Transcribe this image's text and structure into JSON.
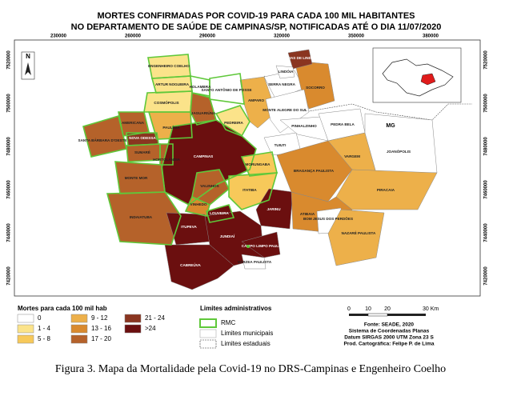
{
  "title": [
    "MORTES CONFIRMADAS POR COVID-19 PARA CADA 100 MIL HABITANTES",
    "NO DEPARTAMENTO DE SAÚDE DE CAMPINAS/SP, NOTIFICADAS ATÉ O DIA 11/07/2020"
  ],
  "x_coords": [
    230000,
    260000,
    290000,
    320000,
    350000,
    380000
  ],
  "y_coords": [
    7520000,
    7500000,
    7480000,
    7460000,
    7440000,
    7420000
  ],
  "north": "N",
  "state_label": "MG",
  "municipalities": [
    {
      "name": "ENGENHEIRO COELHO",
      "color": "#fbe38a"
    },
    {
      "name": "ARTUR NOGUEIRA",
      "color": "#fbe38a"
    },
    {
      "name": "HOLAMBRA",
      "color": "#ffffff"
    },
    {
      "name": "SANTO ANTÔNIO DE POSSE",
      "color": "#ffffff"
    },
    {
      "name": "COSMÓPOLIS",
      "color": "#fbe38a"
    },
    {
      "name": "JAGUARIÚNA",
      "color": "#b5622a"
    },
    {
      "name": "PEDREIRA",
      "color": "#fbe38a"
    },
    {
      "name": "AMPARO",
      "color": "#edb04a"
    },
    {
      "name": "SERRA NEGRA",
      "color": "#ffffff"
    },
    {
      "name": "SOCORRO",
      "color": "#d98a2e"
    },
    {
      "name": "ÁGUAS DE LINDÓIA",
      "color": "#8a3520"
    },
    {
      "name": "LINDÓIA",
      "color": "#ffffff"
    },
    {
      "name": "MONTE ALEGRE DO SUL",
      "color": "#ffffff"
    },
    {
      "name": "AMERICANA",
      "color": "#b5622a"
    },
    {
      "name": "PAULÍNIA",
      "color": "#edb04a"
    },
    {
      "name": "SANTA BÁRBARA D'OESTE",
      "color": "#b5622a"
    },
    {
      "name": "NOVA ODESSA",
      "color": "#8a3520"
    },
    {
      "name": "SUMARÉ",
      "color": "#b5622a"
    },
    {
      "name": "HORTOLÂNDIA",
      "color": "#b5622a"
    },
    {
      "name": "CAMPINAS",
      "color": "#6b0f0f"
    },
    {
      "name": "MONTE MOR",
      "color": "#b5622a"
    },
    {
      "name": "VALINHOS",
      "color": "#b5622a"
    },
    {
      "name": "VINHEDO",
      "color": "#d98a2e"
    },
    {
      "name": "MORUNGABA",
      "color": "#f7c95a"
    },
    {
      "name": "ITATIBA",
      "color": "#f7c95a"
    },
    {
      "name": "LOUVEIRA",
      "color": "#6b0f0f"
    },
    {
      "name": "JARINU",
      "color": "#6b0f0f"
    },
    {
      "name": "TUIUTI",
      "color": "#ffffff"
    },
    {
      "name": "PINHALZINHO",
      "color": "#ffffff"
    },
    {
      "name": "PEDRA BELA",
      "color": "#ffffff"
    },
    {
      "name": "BRAGANÇA PAULISTA",
      "color": "#d98a2e"
    },
    {
      "name": "VARGEM",
      "color": "#edb04a"
    },
    {
      "name": "JOANÓPOLIS",
      "color": "#ffffff"
    },
    {
      "name": "PIRACAIA",
      "color": "#edb04a"
    },
    {
      "name": "ATIBAIA",
      "color": "#d98a2e"
    },
    {
      "name": "BOM JESUS DOS PERDÕES",
      "color": "#ffffff"
    },
    {
      "name": "NAZARÉ PAULISTA",
      "color": "#edb04a"
    },
    {
      "name": "INDAIATUBA",
      "color": "#b5622a"
    },
    {
      "name": "ITUPEVA",
      "color": "#6b0f0f"
    },
    {
      "name": "JUNDIAÍ",
      "color": "#6b0f0f"
    },
    {
      "name": "CAMPO LIMPO PAULISTA",
      "color": "#6b0f0f"
    },
    {
      "name": "VÁRZEA PAULISTA",
      "color": "#ffffff"
    },
    {
      "name": "CABREÚVA",
      "color": "#6b0f0f"
    }
  ],
  "legend": {
    "title": "Mortes para cada 100 mil hab",
    "classes": [
      {
        "label": "0",
        "color": "#ffffff"
      },
      {
        "label": "1 - 4",
        "color": "#fbe38a"
      },
      {
        "label": "5 - 8",
        "color": "#f7c95a"
      },
      {
        "label": "9 - 12",
        "color": "#edb04a"
      },
      {
        "label": "13 - 16",
        "color": "#d98a2e"
      },
      {
        "label": "17 - 20",
        "color": "#b5622a"
      },
      {
        "label": "21 - 24",
        "color": "#8a3520"
      },
      {
        "label": ">24",
        "color": "#6b0f0f"
      }
    ]
  },
  "limits": {
    "title": "Limites administrativos",
    "items": [
      "RMC",
      "Limites municipais",
      "Limites estaduais"
    ]
  },
  "scale": [
    "0",
    "10",
    "20",
    "30 Km"
  ],
  "source": [
    "Fonte: SEADE, 2020",
    "Sistema de Coordenadas Planas",
    "Datum SIRGAS 2000 UTM Zona 23 S",
    "Prod. Cartográfica: Felipe P. de Lima"
  ],
  "caption": "Figura 3.  Mapa da Mortalidade pela Covid-19 no DRS-Campinas e Engenheiro Coelho"
}
